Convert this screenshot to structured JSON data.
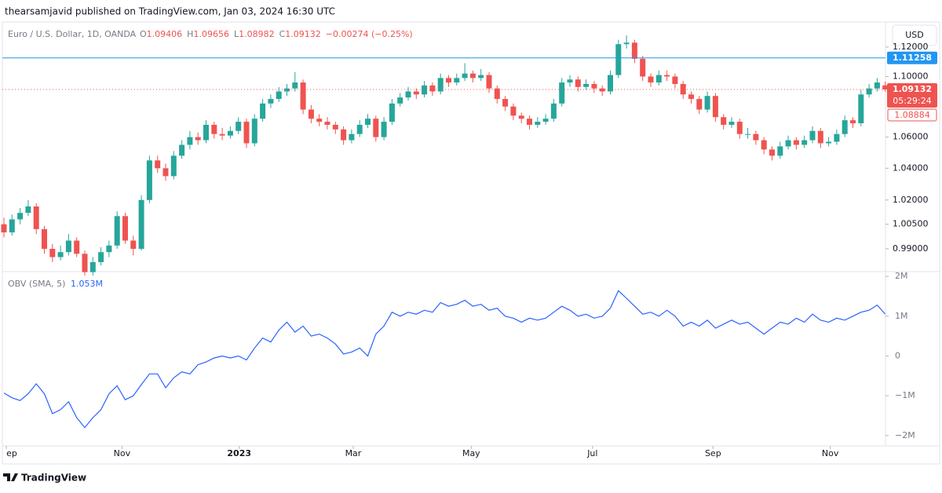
{
  "chart_data": {
    "type": "candlestick",
    "published": "thearsamjavid published on TradingView.com, Jan 03, 2024 16:30 UTC",
    "symbol": "Euro / U.S. Dollar, 1D, OANDA",
    "ohlc_letters": [
      "O",
      "H",
      "L",
      "C"
    ],
    "change": "−0.00274 (−0.25%)",
    "currency": "USD",
    "countdown": "05:29:24",
    "brand": "TradingView",
    "log_scale": true,
    "up_color": "#26a69a",
    "down_color": "#ef5350",
    "ylim": [
      0.9763,
      1.1373
    ],
    "yticks": [
      {
        "value": 0.99,
        "label": "0.99000"
      },
      {
        "value": 1.005,
        "label": "1.00500"
      },
      {
        "value": 1.02,
        "label": "1.02000"
      },
      {
        "value": 1.04,
        "label": "1.04000"
      },
      {
        "value": 1.06,
        "label": "1.06000"
      },
      {
        "value": 1.1,
        "label": "1.10000"
      },
      {
        "value": 1.12,
        "label": "1.12000"
      }
    ],
    "hline": {
      "value": 1.11258,
      "color": "#2196f3"
    },
    "marker_price": 1.08884,
    "xticks": [
      {
        "value": 0.3,
        "label": "ep"
      },
      {
        "value": 14.6,
        "label": "Nov"
      },
      {
        "value": 29.1,
        "label": "2023"
      },
      {
        "value": 43.2,
        "label": "Mar"
      },
      {
        "value": 57.8,
        "label": "May"
      },
      {
        "value": 72.8,
        "label": "Jul"
      },
      {
        "value": 87.7,
        "label": "Sep"
      },
      {
        "value": 102.2,
        "label": "Nov"
      }
    ],
    "candles": [
      [
        1.005,
        1.009,
        0.997,
        1.0
      ],
      [
        1.0,
        1.011,
        0.998,
        1.008
      ],
      [
        1.008,
        1.015,
        1.005,
        1.012
      ],
      [
        1.012,
        1.02,
        1.01,
        1.016
      ],
      [
        1.016,
        1.018,
        0.999,
        1.002
      ],
      [
        1.002,
        1.004,
        0.987,
        0.99
      ],
      [
        0.99,
        0.993,
        0.982,
        0.985
      ],
      [
        0.985,
        0.992,
        0.983,
        0.988
      ],
      [
        0.988,
        0.999,
        0.986,
        0.995
      ],
      [
        0.995,
        0.997,
        0.985,
        0.987
      ],
      [
        0.987,
        0.989,
        0.974,
        0.976
      ],
      [
        0.976,
        0.985,
        0.974,
        0.982
      ],
      [
        0.982,
        0.991,
        0.98,
        0.988
      ],
      [
        0.988,
        0.995,
        0.985,
        0.992
      ],
      [
        0.992,
        1.013,
        0.99,
        1.01
      ],
      [
        1.01,
        1.012,
        0.993,
        0.995
      ],
      [
        0.995,
        0.998,
        0.986,
        0.99
      ],
      [
        0.99,
        1.023,
        0.989,
        1.02
      ],
      [
        1.02,
        1.048,
        1.018,
        1.045
      ],
      [
        1.045,
        1.048,
        1.037,
        1.04
      ],
      [
        1.04,
        1.043,
        1.032,
        1.035
      ],
      [
        1.035,
        1.051,
        1.033,
        1.048
      ],
      [
        1.048,
        1.058,
        1.046,
        1.055
      ],
      [
        1.055,
        1.064,
        1.052,
        1.06
      ],
      [
        1.06,
        1.063,
        1.055,
        1.058
      ],
      [
        1.058,
        1.071,
        1.056,
        1.068
      ],
      [
        1.068,
        1.07,
        1.059,
        1.062
      ],
      [
        1.062,
        1.066,
        1.058,
        1.061
      ],
      [
        1.061,
        1.067,
        1.059,
        1.064
      ],
      [
        1.064,
        1.073,
        1.062,
        1.07
      ],
      [
        1.07,
        1.072,
        1.053,
        1.056
      ],
      [
        1.056,
        1.075,
        1.054,
        1.072
      ],
      [
        1.072,
        1.085,
        1.07,
        1.082
      ],
      [
        1.082,
        1.088,
        1.079,
        1.085
      ],
      [
        1.085,
        1.093,
        1.083,
        1.09
      ],
      [
        1.09,
        1.095,
        1.087,
        1.092
      ],
      [
        1.092,
        1.103,
        1.09,
        1.096
      ],
      [
        1.096,
        1.098,
        1.075,
        1.078
      ],
      [
        1.078,
        1.081,
        1.069,
        1.072
      ],
      [
        1.072,
        1.075,
        1.067,
        1.07
      ],
      [
        1.07,
        1.073,
        1.065,
        1.068
      ],
      [
        1.068,
        1.07,
        1.062,
        1.065
      ],
      [
        1.065,
        1.067,
        1.055,
        1.058
      ],
      [
        1.058,
        1.065,
        1.056,
        1.062
      ],
      [
        1.062,
        1.071,
        1.06,
        1.068
      ],
      [
        1.068,
        1.075,
        1.066,
        1.072
      ],
      [
        1.072,
        1.074,
        1.057,
        1.06
      ],
      [
        1.06,
        1.073,
        1.058,
        1.07
      ],
      [
        1.07,
        1.085,
        1.068,
        1.082
      ],
      [
        1.082,
        1.089,
        1.08,
        1.086
      ],
      [
        1.086,
        1.093,
        1.084,
        1.09
      ],
      [
        1.09,
        1.092,
        1.085,
        1.088
      ],
      [
        1.088,
        1.097,
        1.086,
        1.094
      ],
      [
        1.094,
        1.096,
        1.087,
        1.09
      ],
      [
        1.09,
        1.102,
        1.088,
        1.099
      ],
      [
        1.099,
        1.101,
        1.093,
        1.096
      ],
      [
        1.096,
        1.102,
        1.094,
        1.099
      ],
      [
        1.099,
        1.109,
        1.097,
        1.102
      ],
      [
        1.102,
        1.104,
        1.096,
        1.099
      ],
      [
        1.099,
        1.105,
        1.097,
        1.101
      ],
      [
        1.101,
        1.103,
        1.089,
        1.092
      ],
      [
        1.092,
        1.094,
        1.082,
        1.085
      ],
      [
        1.085,
        1.087,
        1.077,
        1.08
      ],
      [
        1.08,
        1.082,
        1.071,
        1.074
      ],
      [
        1.074,
        1.076,
        1.069,
        1.072
      ],
      [
        1.072,
        1.074,
        1.065,
        1.068
      ],
      [
        1.068,
        1.073,
        1.066,
        1.07
      ],
      [
        1.07,
        1.075,
        1.068,
        1.072
      ],
      [
        1.072,
        1.085,
        1.07,
        1.082
      ],
      [
        1.082,
        1.099,
        1.08,
        1.096
      ],
      [
        1.096,
        1.101,
        1.093,
        1.098
      ],
      [
        1.098,
        1.1,
        1.09,
        1.093
      ],
      [
        1.093,
        1.098,
        1.091,
        1.095
      ],
      [
        1.095,
        1.097,
        1.089,
        1.092
      ],
      [
        1.092,
        1.094,
        1.087,
        1.09
      ],
      [
        1.09,
        1.104,
        1.088,
        1.101
      ],
      [
        1.101,
        1.125,
        1.099,
        1.122
      ],
      [
        1.122,
        1.128,
        1.119,
        1.123
      ],
      [
        1.123,
        1.125,
        1.109,
        1.112
      ],
      [
        1.112,
        1.114,
        1.097,
        1.1
      ],
      [
        1.1,
        1.102,
        1.093,
        1.096
      ],
      [
        1.096,
        1.104,
        1.094,
        1.101
      ],
      [
        1.101,
        1.104,
        1.097,
        1.1
      ],
      [
        1.1,
        1.102,
        1.092,
        1.095
      ],
      [
        1.095,
        1.097,
        1.085,
        1.088
      ],
      [
        1.088,
        1.09,
        1.082,
        1.085
      ],
      [
        1.085,
        1.087,
        1.075,
        1.078
      ],
      [
        1.078,
        1.09,
        1.076,
        1.087
      ],
      [
        1.087,
        1.089,
        1.07,
        1.073
      ],
      [
        1.073,
        1.075,
        1.065,
        1.068
      ],
      [
        1.068,
        1.073,
        1.066,
        1.07
      ],
      [
        1.07,
        1.072,
        1.059,
        1.062
      ],
      [
        1.062,
        1.066,
        1.059,
        1.062
      ],
      [
        1.062,
        1.064,
        1.055,
        1.058
      ],
      [
        1.058,
        1.06,
        1.049,
        1.052
      ],
      [
        1.052,
        1.054,
        1.045,
        1.048
      ],
      [
        1.048,
        1.057,
        1.046,
        1.054
      ],
      [
        1.054,
        1.061,
        1.052,
        1.058
      ],
      [
        1.058,
        1.06,
        1.052,
        1.055
      ],
      [
        1.055,
        1.061,
        1.053,
        1.058
      ],
      [
        1.058,
        1.067,
        1.056,
        1.064
      ],
      [
        1.064,
        1.066,
        1.053,
        1.056
      ],
      [
        1.056,
        1.06,
        1.054,
        1.057
      ],
      [
        1.057,
        1.065,
        1.055,
        1.062
      ],
      [
        1.062,
        1.074,
        1.06,
        1.071
      ],
      [
        1.071,
        1.073,
        1.066,
        1.069
      ],
      [
        1.069,
        1.091,
        1.067,
        1.088
      ],
      [
        1.088,
        1.095,
        1.086,
        1.092
      ],
      [
        1.092,
        1.099,
        1.09,
        1.096
      ],
      [
        1.09406,
        1.09656,
        1.08982,
        1.09132
      ]
    ],
    "obv": {
      "name": "OBV (SMA, 5)",
      "last_label": "1.053M",
      "color": "#2962ff",
      "ylim": [
        -2.26,
        2.12
      ],
      "yticks": [
        {
          "value": 2,
          "label": "2M"
        },
        {
          "value": 1,
          "label": "1M"
        },
        0,
        {
          "value": -1,
          "label": "−1M"
        },
        {
          "value": -2,
          "label": "−2M"
        }
      ],
      "values": [
        -0.93,
        -1.05,
        -1.12,
        -0.95,
        -0.7,
        -0.95,
        -1.45,
        -1.35,
        -1.15,
        -1.55,
        -1.8,
        -1.55,
        -1.35,
        -0.95,
        -0.75,
        -1.1,
        -1.0,
        -0.72,
        -0.45,
        -0.45,
        -0.8,
        -0.55,
        -0.4,
        -0.45,
        -0.22,
        -0.15,
        -0.05,
        0.0,
        -0.05,
        0.0,
        -0.1,
        0.2,
        0.45,
        0.35,
        0.65,
        0.85,
        0.6,
        0.75,
        0.5,
        0.55,
        0.45,
        0.3,
        0.05,
        0.1,
        0.2,
        0.0,
        0.55,
        0.75,
        1.1,
        1.0,
        1.1,
        1.05,
        1.15,
        1.1,
        1.34,
        1.25,
        1.3,
        1.4,
        1.25,
        1.3,
        1.15,
        1.2,
        1.0,
        0.95,
        0.85,
        0.95,
        0.9,
        0.95,
        1.1,
        1.25,
        1.15,
        1.0,
        1.05,
        0.95,
        1.0,
        1.2,
        1.64,
        1.45,
        1.25,
        1.05,
        1.1,
        1.0,
        1.15,
        1.0,
        0.75,
        0.85,
        0.75,
        0.9,
        0.7,
        0.8,
        0.9,
        0.8,
        0.85,
        0.7,
        0.55,
        0.7,
        0.85,
        0.8,
        0.95,
        0.85,
        1.05,
        0.9,
        0.85,
        0.95,
        0.9,
        1.0,
        1.1,
        1.15,
        1.28,
        1.053
      ]
    }
  }
}
